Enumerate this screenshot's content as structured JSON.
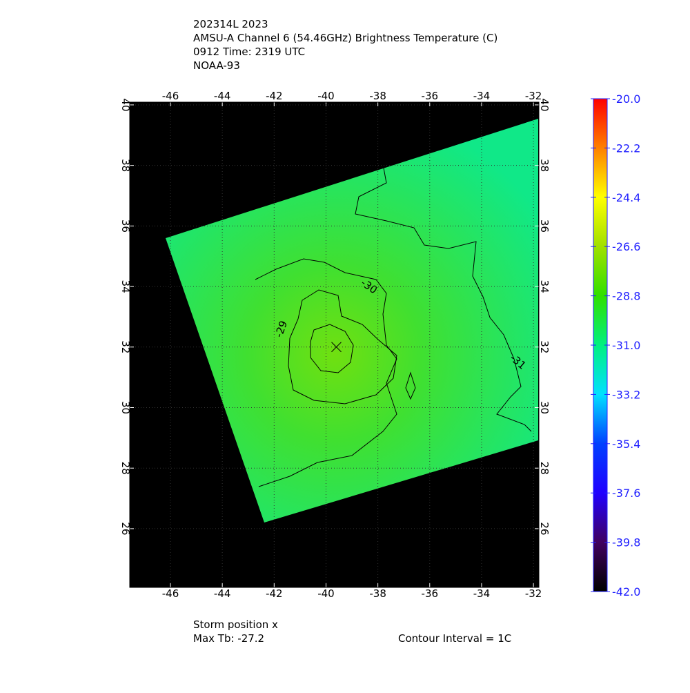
{
  "chart_data": {
    "type": "map",
    "title_lines": [
      "202314L 2023",
      "AMSU-A Channel 6 (54.46GHz) Brightness Temperature (C)",
      "0912 Time: 2319 UTC",
      "NOAA-93"
    ],
    "xlim": [
      -47.57,
      -31.79
    ],
    "ylim": [
      24.06,
      40.09
    ],
    "xticks": [
      -46,
      -44,
      -42,
      -40,
      -38,
      -36,
      -34,
      -32
    ],
    "yticks": [
      26,
      28,
      30,
      32,
      34,
      36,
      38,
      40
    ],
    "grid": true,
    "storm": {
      "lon": -39.6,
      "lat": 32.0
    },
    "contour_labels": [
      "-30",
      "-29",
      "-31"
    ],
    "colorbar": {
      "lim": [
        -42.0,
        -20.0
      ],
      "ticks": [
        {
          "value": -20.0,
          "label": "-20.0"
        },
        {
          "value": -22.2,
          "label": "-22.2"
        },
        {
          "value": -24.4,
          "label": "-24.4"
        },
        {
          "value": -26.6,
          "label": "-26.6"
        },
        {
          "value": -28.8,
          "label": "-28.8"
        },
        {
          "value": -31.0,
          "label": "-31.0"
        },
        {
          "value": -33.2,
          "label": "-33.2"
        },
        {
          "value": -35.4,
          "label": "-35.4"
        },
        {
          "value": -37.6,
          "label": "-37.6"
        },
        {
          "value": -39.8,
          "label": "-39.8"
        },
        {
          "value": -42.0,
          "label": "-42.0"
        }
      ],
      "colors": [
        "#000000",
        "#400060",
        "#2000ff",
        "#0040ff",
        "#00e0ff",
        "#00f080",
        "#30e000",
        "#a0e000",
        "#ffff00",
        "#ff8000",
        "#ff0000"
      ]
    },
    "footer": {
      "storm_label": "Storm position x",
      "max_tb": "Max Tb: -27.2",
      "contour_interval": "Contour Interval = 1C"
    }
  }
}
